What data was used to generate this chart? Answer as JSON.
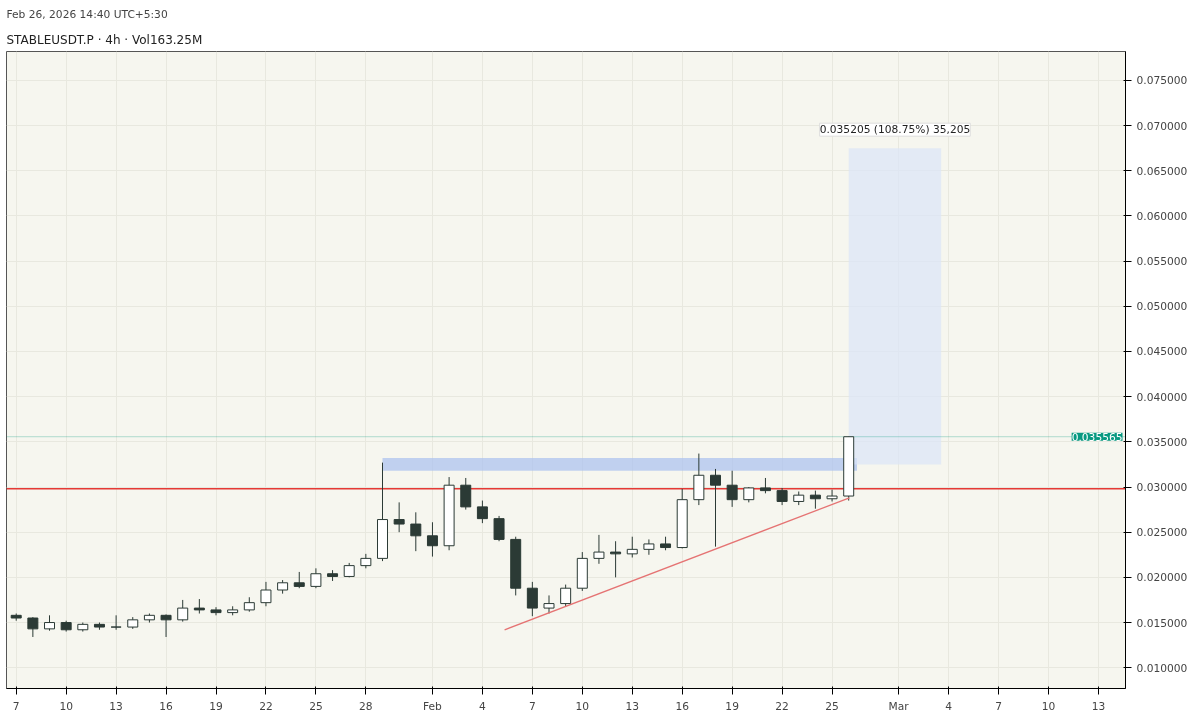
{
  "chart_data": {
    "type": "candlestick",
    "title": "STABLEUSDT.P · 4h · Vol163.25M",
    "annotations": [
      "Feb 26, 2026 14:40 UTC+5:30",
      "0.035205 (108.75%) 35,205"
    ],
    "x": [
      "2026-01-07",
      "2026-01-08",
      "2026-01-09",
      "2026-01-10",
      "2026-01-11",
      "2026-01-12",
      "2026-01-13",
      "2026-01-14",
      "2026-01-15",
      "2026-01-16",
      "2026-01-17",
      "2026-01-18",
      "2026-01-19",
      "2026-01-20",
      "2026-01-21",
      "2026-01-22",
      "2026-01-23",
      "2026-01-24",
      "2026-01-25",
      "2026-01-26",
      "2026-01-27",
      "2026-01-28",
      "2026-01-29",
      "2026-01-30",
      "2026-01-31",
      "2026-02-01",
      "2026-02-02",
      "2026-02-03",
      "2026-02-04",
      "2026-02-05",
      "2026-02-06",
      "2026-02-07",
      "2026-02-08",
      "2026-02-09",
      "2026-02-10",
      "2026-02-11",
      "2026-02-12",
      "2026-02-13",
      "2026-02-14",
      "2026-02-15",
      "2026-02-16",
      "2026-02-17",
      "2026-02-18",
      "2026-02-19",
      "2026-02-20",
      "2026-02-21",
      "2026-02-22",
      "2026-02-23",
      "2026-02-24",
      "2026-02-25",
      "2026-02-26"
    ],
    "ohlc": [
      [
        0.0158,
        0.016,
        0.0152,
        0.0155
      ],
      [
        0.0155,
        0.0156,
        0.0134,
        0.0143
      ],
      [
        0.0143,
        0.0158,
        0.0141,
        0.015
      ],
      [
        0.015,
        0.0152,
        0.014,
        0.0142
      ],
      [
        0.0142,
        0.015,
        0.014,
        0.0148
      ],
      [
        0.0148,
        0.015,
        0.0142,
        0.0145
      ],
      [
        0.0145,
        0.0158,
        0.0142,
        0.0145
      ],
      [
        0.0145,
        0.0156,
        0.0143,
        0.0153
      ],
      [
        0.0153,
        0.016,
        0.015,
        0.0158
      ],
      [
        0.0158,
        0.0159,
        0.0134,
        0.0153
      ],
      [
        0.0153,
        0.0175,
        0.0151,
        0.0166
      ],
      [
        0.0166,
        0.0176,
        0.016,
        0.0164
      ],
      [
        0.0164,
        0.0167,
        0.0158,
        0.0161
      ],
      [
        0.0161,
        0.0168,
        0.0158,
        0.0164
      ],
      [
        0.0164,
        0.0178,
        0.0162,
        0.0172
      ],
      [
        0.0172,
        0.0195,
        0.0168,
        0.0186
      ],
      [
        0.0186,
        0.0197,
        0.0182,
        0.0194
      ],
      [
        0.0194,
        0.0206,
        0.0188,
        0.019
      ],
      [
        0.019,
        0.021,
        0.0188,
        0.0204
      ],
      [
        0.0204,
        0.0208,
        0.0196,
        0.0201
      ],
      [
        0.0201,
        0.0216,
        0.02,
        0.0213
      ],
      [
        0.0213,
        0.0226,
        0.021,
        0.0221
      ],
      [
        0.0221,
        0.0327,
        0.0218,
        0.0264
      ],
      [
        0.0264,
        0.0283,
        0.025,
        0.0259
      ],
      [
        0.0259,
        0.0272,
        0.0229,
        0.0246
      ],
      [
        0.0246,
        0.0261,
        0.0223,
        0.0235
      ],
      [
        0.0235,
        0.0311,
        0.023,
        0.0302
      ],
      [
        0.0302,
        0.031,
        0.0275,
        0.0278
      ],
      [
        0.0278,
        0.0285,
        0.026,
        0.0265
      ],
      [
        0.0265,
        0.0268,
        0.024,
        0.0242
      ],
      [
        0.0242,
        0.0245,
        0.018,
        0.0188
      ],
      [
        0.0188,
        0.0195,
        0.0157,
        0.0166
      ],
      [
        0.0166,
        0.018,
        0.016,
        0.0171
      ],
      [
        0.0171,
        0.0192,
        0.0168,
        0.0188
      ],
      [
        0.0188,
        0.0228,
        0.0185,
        0.0221
      ],
      [
        0.0221,
        0.0247,
        0.0215,
        0.0228
      ],
      [
        0.0228,
        0.024,
        0.02,
        0.0226
      ],
      [
        0.0226,
        0.0245,
        0.0222,
        0.0231
      ],
      [
        0.0231,
        0.0242,
        0.0225,
        0.0237
      ],
      [
        0.0237,
        0.0245,
        0.023,
        0.0233
      ],
      [
        0.0233,
        0.0298,
        0.0232,
        0.0286
      ],
      [
        0.0286,
        0.0337,
        0.028,
        0.0313
      ],
      [
        0.0313,
        0.032,
        0.0234,
        0.0302
      ],
      [
        0.0302,
        0.0318,
        0.0278,
        0.0286
      ],
      [
        0.0286,
        0.03,
        0.0283,
        0.0299
      ],
      [
        0.0299,
        0.031,
        0.0293,
        0.0296
      ],
      [
        0.0296,
        0.0299,
        0.028,
        0.0284
      ],
      [
        0.0284,
        0.0295,
        0.028,
        0.0291
      ],
      [
        0.0291,
        0.0296,
        0.0276,
        0.0287
      ],
      [
        0.0287,
        0.0297,
        0.0284,
        0.029
      ],
      [
        0.029,
        0.035565,
        0.0285,
        0.035565
      ]
    ],
    "color": "#2b3a35",
    "series": [
      {
        "type": "line",
        "color": "#e57373",
        "x": [
          "2026-02-05T08:00",
          "2026-02-26T01:00"
        ],
        "values": [
          0.0142,
          0.0288
        ]
      }
    ],
    "ref_lines": [
      {
        "axis": "y",
        "value": 0.0298,
        "color": "#e53935"
      },
      {
        "axis": "y",
        "value": 0.035565,
        "label": "0.035565",
        "color": "#089981"
      }
    ],
    "bands": [
      {
        "axis": "y",
        "from": 0.0318,
        "to": 0.0332,
        "color": "#a9c1f0"
      },
      {
        "axis": "y",
        "from": 0.0325,
        "to": 0.0675,
        "color": "#dbe5f8"
      }
    ],
    "xlim": [
      "2026-01-06T10:00",
      "2026-03-14T15:00"
    ],
    "xticks": [
      {
        "value": "2026-01-07",
        "label": "7"
      },
      {
        "value": "2026-01-10",
        "label": "10"
      },
      {
        "value": "2026-01-13",
        "label": "13"
      },
      {
        "value": "2026-01-16",
        "label": "16"
      },
      {
        "value": "2026-01-19",
        "label": "19"
      },
      {
        "value": "2026-01-22",
        "label": "22"
      },
      {
        "value": "2026-01-25",
        "label": "25"
      },
      {
        "value": "2026-01-28",
        "label": "28"
      },
      {
        "value": "2026-02-01",
        "label": "Feb"
      },
      {
        "value": "2026-02-04",
        "label": "4"
      },
      {
        "value": "2026-02-07",
        "label": "7"
      },
      {
        "value": "2026-02-10",
        "label": "10"
      },
      {
        "value": "2026-02-13",
        "label": "13"
      },
      {
        "value": "2026-02-16",
        "label": "16"
      },
      {
        "value": "2026-02-19",
        "label": "19"
      },
      {
        "value": "2026-02-22",
        "label": "22"
      },
      {
        "value": "2026-02-25",
        "label": "25"
      },
      {
        "value": "2026-03-01",
        "label": "Mar"
      },
      {
        "value": "2026-03-04",
        "label": "4"
      },
      {
        "value": "2026-03-07",
        "label": "7"
      },
      {
        "value": "2026-03-10",
        "label": "10"
      },
      {
        "value": "2026-03-13",
        "label": "13"
      }
    ],
    "ylim": [
      0.0077,
      0.0782
    ],
    "yticks": [
      {
        "value": 0.01,
        "label": "0.010000"
      },
      {
        "value": 0.015,
        "label": "0.015000"
      },
      {
        "value": 0.02,
        "label": "0.020000"
      },
      {
        "value": 0.025,
        "label": "0.025000"
      },
      {
        "value": 0.03,
        "label": "0.030000"
      },
      {
        "value": 0.035,
        "label": "0.035000"
      },
      {
        "value": 0.04,
        "label": "0.040000"
      },
      {
        "value": 0.045,
        "label": "0.045000"
      },
      {
        "value": 0.05,
        "label": "0.050000"
      },
      {
        "value": 0.055,
        "label": "0.055000"
      },
      {
        "value": 0.06,
        "label": "0.060000"
      },
      {
        "value": 0.065,
        "label": "0.065000"
      },
      {
        "value": 0.07,
        "label": "0.070000"
      },
      {
        "value": 0.075,
        "label": "0.075000"
      }
    ],
    "grid": true
  }
}
